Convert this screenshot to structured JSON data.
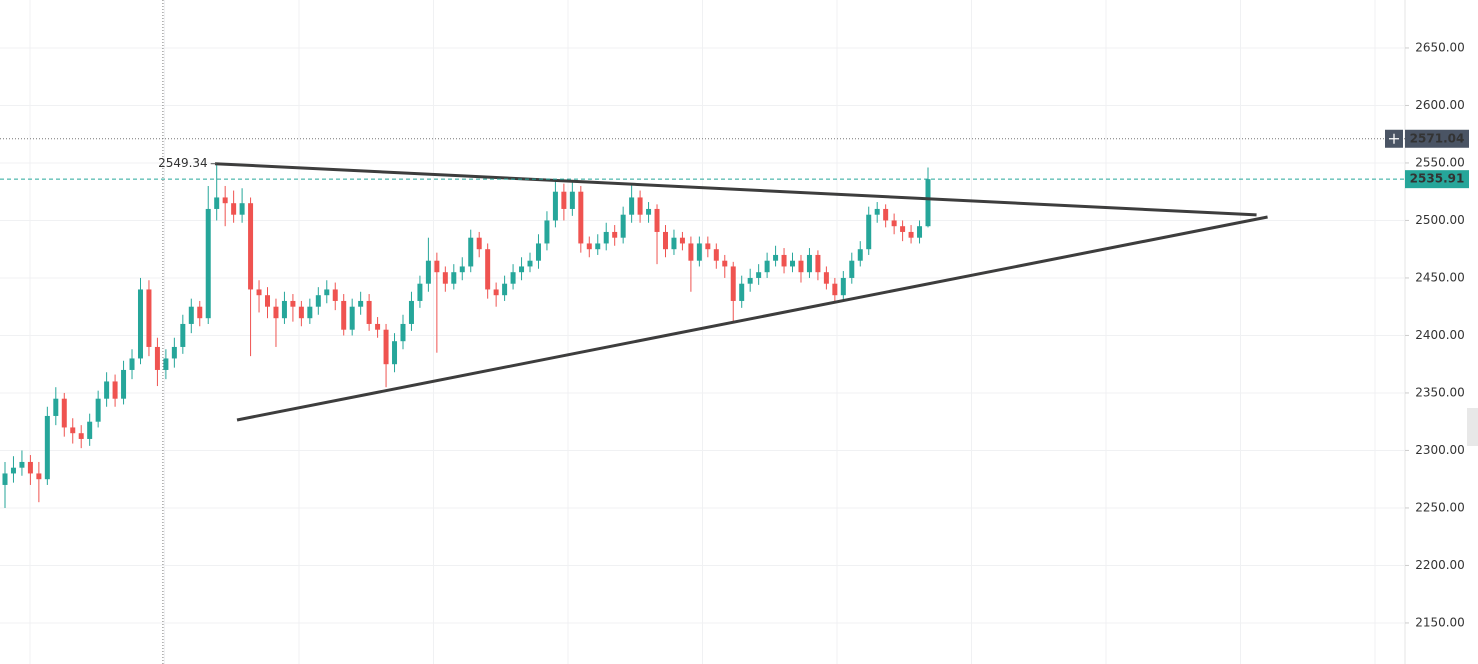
{
  "chart_data": {
    "type": "candlestick",
    "up_color": "#26a69a",
    "down_color": "#ef5350",
    "grid": true,
    "ylim": [
      2114.3,
      2691.7
    ],
    "yticks": [
      {
        "value": 2150,
        "label": "2150.00"
      },
      {
        "value": 2200,
        "label": "2200.00"
      },
      {
        "value": 2250,
        "label": "2250.00"
      },
      {
        "value": 2300,
        "label": "2300.00"
      },
      {
        "value": 2350,
        "label": "2350.00"
      },
      {
        "value": 2400,
        "label": "2400.00"
      },
      {
        "value": 2450,
        "label": "2450.00"
      },
      {
        "value": 2500,
        "label": "2500.00"
      },
      {
        "value": 2550,
        "label": "2550.00"
      },
      {
        "value": 2600,
        "label": "2600.00"
      },
      {
        "value": 2650,
        "label": "2650.00"
      }
    ],
    "candles": [
      [
        2270,
        2290,
        2250,
        2280
      ],
      [
        2280,
        2295,
        2272,
        2285
      ],
      [
        2285,
        2300,
        2278,
        2290
      ],
      [
        2290,
        2296,
        2270,
        2280
      ],
      [
        2280,
        2290,
        2255,
        2275
      ],
      [
        2275,
        2338,
        2270,
        2330
      ],
      [
        2330,
        2355,
        2322,
        2345
      ],
      [
        2345,
        2350,
        2312,
        2320
      ],
      [
        2320,
        2328,
        2306,
        2315
      ],
      [
        2315,
        2322,
        2302,
        2310
      ],
      [
        2310,
        2332,
        2304,
        2325
      ],
      [
        2325,
        2352,
        2320,
        2345
      ],
      [
        2345,
        2368,
        2338,
        2360
      ],
      [
        2360,
        2366,
        2338,
        2345
      ],
      [
        2345,
        2378,
        2340,
        2370
      ],
      [
        2370,
        2388,
        2362,
        2380
      ],
      [
        2380,
        2450,
        2375,
        2440
      ],
      [
        2440,
        2448,
        2382,
        2390
      ],
      [
        2390,
        2398,
        2356,
        2370
      ],
      [
        2370,
        2388,
        2362,
        2380
      ],
      [
        2380,
        2398,
        2372,
        2390
      ],
      [
        2390,
        2418,
        2384,
        2410
      ],
      [
        2410,
        2432,
        2402,
        2425
      ],
      [
        2425,
        2430,
        2408,
        2415
      ],
      [
        2415,
        2530,
        2410,
        2510
      ],
      [
        2510,
        2549.34,
        2500,
        2520
      ],
      [
        2520,
        2530,
        2495,
        2515
      ],
      [
        2515,
        2526,
        2498,
        2505
      ],
      [
        2505,
        2528,
        2498,
        2515
      ],
      [
        2515,
        2520,
        2382,
        2440
      ],
      [
        2440,
        2448,
        2420,
        2435
      ],
      [
        2435,
        2442,
        2415,
        2425
      ],
      [
        2425,
        2432,
        2390,
        2415
      ],
      [
        2415,
        2438,
        2410,
        2430
      ],
      [
        2430,
        2436,
        2412,
        2425
      ],
      [
        2425,
        2430,
        2408,
        2415
      ],
      [
        2415,
        2432,
        2410,
        2425
      ],
      [
        2425,
        2442,
        2418,
        2435
      ],
      [
        2435,
        2448,
        2428,
        2440
      ],
      [
        2440,
        2446,
        2422,
        2430
      ],
      [
        2430,
        2436,
        2400,
        2405
      ],
      [
        2405,
        2432,
        2400,
        2425
      ],
      [
        2425,
        2438,
        2418,
        2430
      ],
      [
        2430,
        2436,
        2404,
        2410
      ],
      [
        2410,
        2416,
        2398,
        2405
      ],
      [
        2405,
        2410,
        2355,
        2375
      ],
      [
        2375,
        2402,
        2368,
        2395
      ],
      [
        2395,
        2418,
        2388,
        2410
      ],
      [
        2410,
        2438,
        2404,
        2430
      ],
      [
        2430,
        2452,
        2424,
        2445
      ],
      [
        2445,
        2485,
        2438,
        2465
      ],
      [
        2465,
        2472,
        2385,
        2455
      ],
      [
        2455,
        2460,
        2438,
        2445
      ],
      [
        2445,
        2462,
        2440,
        2455
      ],
      [
        2455,
        2468,
        2448,
        2460
      ],
      [
        2460,
        2492,
        2455,
        2485
      ],
      [
        2485,
        2490,
        2468,
        2475
      ],
      [
        2475,
        2480,
        2432,
        2440
      ],
      [
        2440,
        2446,
        2425,
        2435
      ],
      [
        2435,
        2452,
        2430,
        2445
      ],
      [
        2445,
        2462,
        2440,
        2455
      ],
      [
        2455,
        2468,
        2448,
        2460
      ],
      [
        2460,
        2472,
        2455,
        2465
      ],
      [
        2465,
        2488,
        2458,
        2480
      ],
      [
        2480,
        2508,
        2474,
        2500
      ],
      [
        2500,
        2535,
        2494,
        2525
      ],
      [
        2525,
        2532,
        2500,
        2510
      ],
      [
        2510,
        2533,
        2504,
        2525
      ],
      [
        2525,
        2530,
        2472,
        2480
      ],
      [
        2480,
        2486,
        2468,
        2475
      ],
      [
        2475,
        2488,
        2470,
        2480
      ],
      [
        2480,
        2498,
        2474,
        2490
      ],
      [
        2490,
        2496,
        2478,
        2485
      ],
      [
        2485,
        2512,
        2480,
        2505
      ],
      [
        2505,
        2532,
        2498,
        2520
      ],
      [
        2520,
        2526,
        2498,
        2505
      ],
      [
        2505,
        2516,
        2498,
        2510
      ],
      [
        2510,
        2514,
        2462,
        2490
      ],
      [
        2490,
        2496,
        2468,
        2475
      ],
      [
        2475,
        2492,
        2470,
        2485
      ],
      [
        2485,
        2490,
        2474,
        2480
      ],
      [
        2480,
        2486,
        2438,
        2465
      ],
      [
        2465,
        2486,
        2460,
        2480
      ],
      [
        2480,
        2486,
        2468,
        2475
      ],
      [
        2475,
        2480,
        2458,
        2465
      ],
      [
        2465,
        2470,
        2450,
        2460
      ],
      [
        2460,
        2464,
        2412,
        2430
      ],
      [
        2430,
        2452,
        2424,
        2445
      ],
      [
        2445,
        2458,
        2438,
        2450
      ],
      [
        2450,
        2462,
        2444,
        2455
      ],
      [
        2455,
        2472,
        2450,
        2465
      ],
      [
        2465,
        2478,
        2460,
        2470
      ],
      [
        2470,
        2476,
        2454,
        2460
      ],
      [
        2460,
        2472,
        2455,
        2465
      ],
      [
        2465,
        2470,
        2446,
        2455
      ],
      [
        2455,
        2476,
        2450,
        2470
      ],
      [
        2470,
        2474,
        2448,
        2455
      ],
      [
        2455,
        2460,
        2440,
        2445
      ],
      [
        2445,
        2450,
        2430,
        2435
      ],
      [
        2435,
        2456,
        2430,
        2450
      ],
      [
        2450,
        2472,
        2445,
        2465
      ],
      [
        2465,
        2482,
        2460,
        2475
      ],
      [
        2475,
        2512,
        2470,
        2505
      ],
      [
        2505,
        2516,
        2498,
        2510
      ],
      [
        2510,
        2514,
        2494,
        2500
      ],
      [
        2500,
        2506,
        2488,
        2495
      ],
      [
        2495,
        2500,
        2482,
        2490
      ],
      [
        2490,
        2496,
        2480,
        2485
      ],
      [
        2485,
        2500,
        2480,
        2495
      ],
      [
        2495,
        2546,
        2494,
        2535.91
      ]
    ],
    "high_label_index": 25,
    "crosshair": {
      "index": 18.65,
      "price": 2571.04
    },
    "trend_lines": [
      {
        "x": [
          24.8,
          147.8
        ],
        "y": [
          2549.34,
          2504.8
        ]
      },
      {
        "x": [
          27.4,
          149.1
        ],
        "y": [
          2326.5,
          2503
        ]
      }
    ]
  }
}
